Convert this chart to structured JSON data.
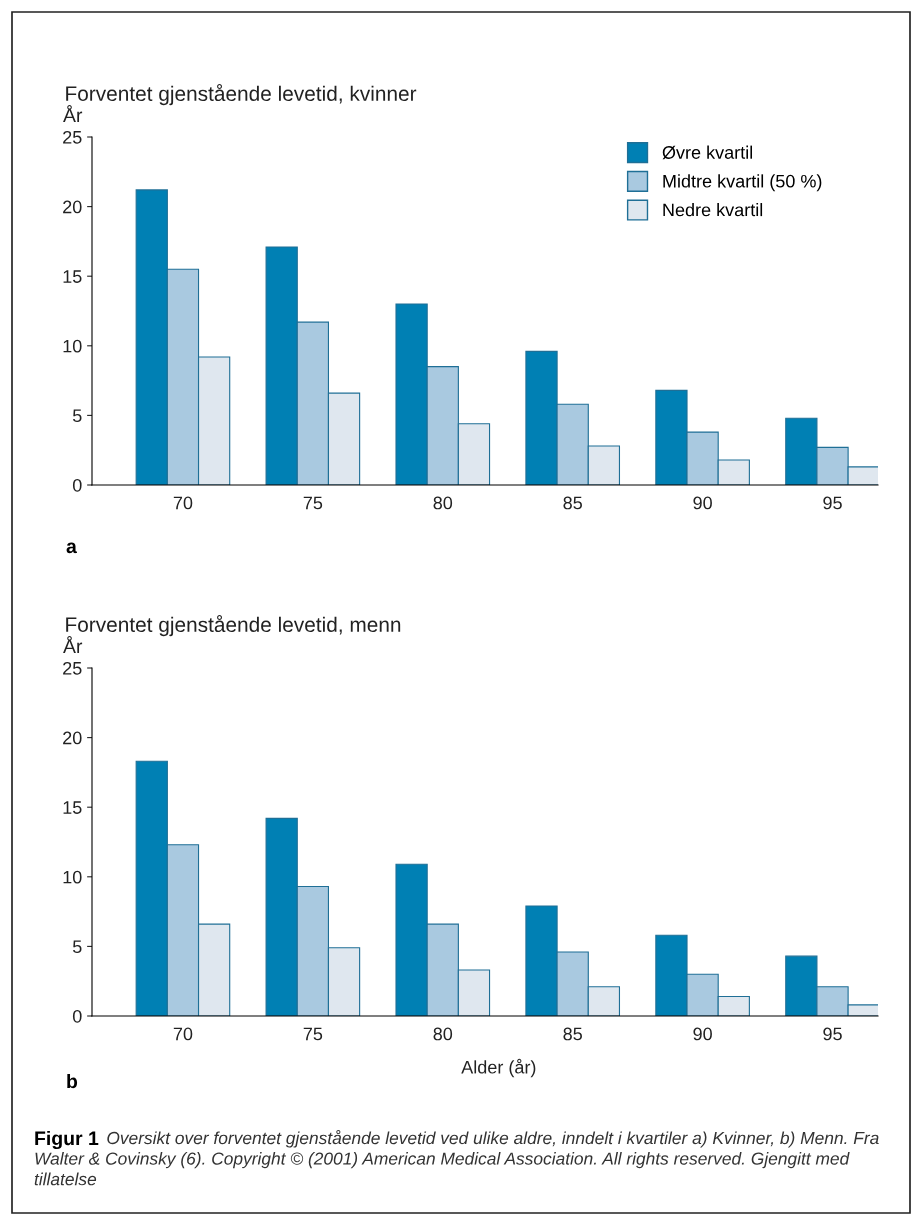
{
  "chart_data": [
    {
      "type": "bar",
      "title": "Forventet gjenstående levetid, kvinner",
      "ylabel": "År",
      "categories": [
        "70",
        "75",
        "80",
        "85",
        "90",
        "95"
      ],
      "series": [
        {
          "name": "Øvre kvartil",
          "color": "#0080b4",
          "values": [
            21.2,
            17.1,
            13.0,
            9.6,
            6.8,
            4.8
          ]
        },
        {
          "name": "Midtre kvartil (50 %)",
          "color": "#a9c9e0",
          "values": [
            15.5,
            11.7,
            8.5,
            5.8,
            3.8,
            2.7
          ]
        },
        {
          "name": "Nedre kvartil",
          "color": "#dfe7ef",
          "values": [
            9.2,
            6.6,
            4.4,
            2.8,
            1.8,
            1.3
          ]
        }
      ],
      "ylim": [
        0,
        25
      ],
      "yticks": [
        0,
        5,
        10,
        15,
        20,
        25
      ],
      "grid": false,
      "legend": "top right",
      "annotations": [
        "a"
      ]
    },
    {
      "type": "bar",
      "title": "Forventet gjenstående levetid, menn",
      "ylabel": "År",
      "xlabel": "Alder (år)",
      "categories": [
        "70",
        "75",
        "80",
        "85",
        "90",
        "95"
      ],
      "series": [
        {
          "color": "#0080b4",
          "values": [
            18.3,
            14.2,
            10.9,
            7.9,
            5.8,
            4.3
          ]
        },
        {
          "color": "#a9c9e0",
          "values": [
            12.3,
            9.3,
            6.6,
            4.6,
            3.0,
            2.1
          ]
        },
        {
          "color": "#dfe7ef",
          "values": [
            6.6,
            4.9,
            3.3,
            2.1,
            1.4,
            0.8
          ]
        }
      ],
      "ylim": [
        0,
        25
      ],
      "yticks": [
        0,
        5,
        10,
        15,
        20,
        25
      ],
      "grid": false,
      "annotations": [
        "b",
        "Figur 1",
        "Oversikt over forventet gjenstående levetid ved ulike aldre, inndelt i kvartiler a) Kvinner, b) Menn. Fra Walter & Covinsky (6). Copyright © (2001) American Medical Association. All rights reserved. Gjengitt med tillatelse"
      ]
    }
  ]
}
